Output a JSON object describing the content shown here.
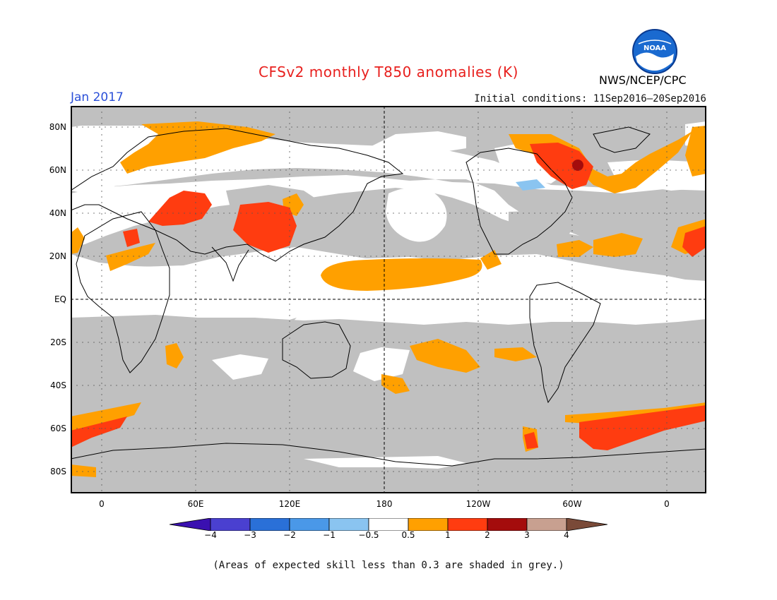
{
  "title": "CFSv2 monthly T850 anomalies (K)",
  "month": "Jan 2017",
  "initial_conditions": "Initial conditions: 11Sep2016–20Sep2016",
  "agency": "NWS/NCEP/CPC",
  "logo_text": "NOAA",
  "lat_labels": [
    "80N",
    "60N",
    "40N",
    "20N",
    "EQ",
    "20S",
    "40S",
    "60S",
    "80S"
  ],
  "lon_labels": [
    "0",
    "60E",
    "120E",
    "180",
    "120W",
    "60W",
    "0"
  ],
  "colorbar": {
    "labels": [
      "−4",
      "−3",
      "−2",
      "−1",
      "−0.5",
      "0.5",
      "1",
      "2",
      "3",
      "4"
    ],
    "colors": [
      "#3a10b0",
      "#4a40d0",
      "#2a70d8",
      "#4a98e8",
      "#8ac4f0",
      "#ffffff",
      "#ffa000",
      "#ff3c10",
      "#a40c0c",
      "#c8a090",
      "#7a4a38"
    ]
  },
  "legend": {
    "grey_color": "#c0c0c0",
    "positive_1": "#ffa000",
    "positive_2": "#ff3c10",
    "positive_3": "#a40c0c",
    "negative_1": "#8ac4f0"
  },
  "note": "(Areas of expected skill less than 0.3 are shaded in grey.)"
}
